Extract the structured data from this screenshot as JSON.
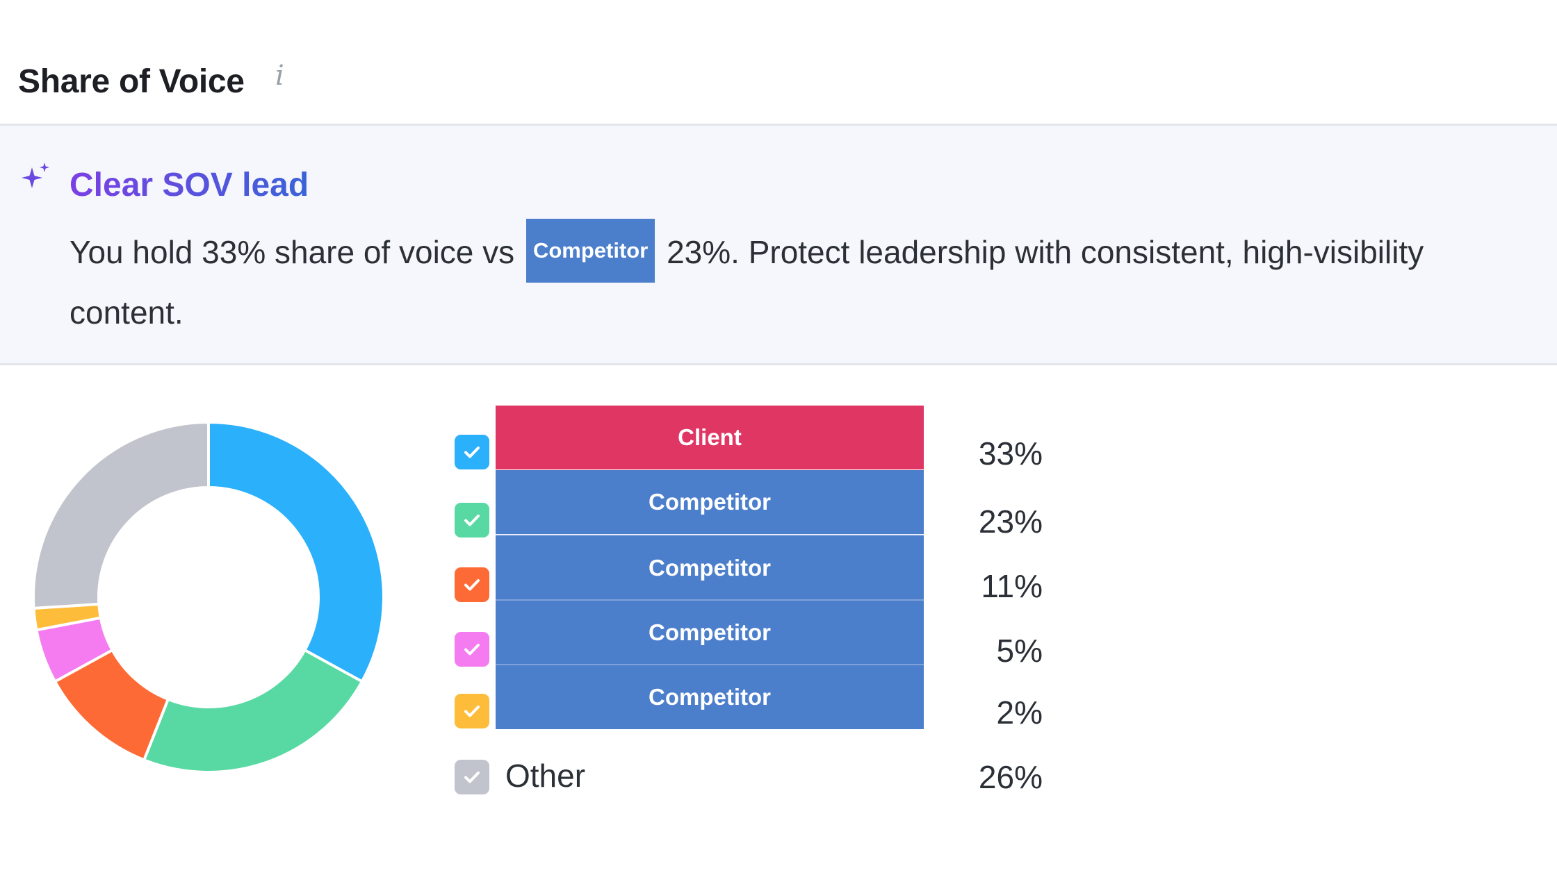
{
  "widget": {
    "title": "Share of Voice",
    "info_icon": "info-icon"
  },
  "insight": {
    "icon": "sparkle-icon",
    "title": "Clear SOV lead",
    "text_before": "You hold 33% share of voice vs",
    "tag": "Competitor",
    "text_after": "23%. Protect leadership with consistent, high-visibility content."
  },
  "colors": {
    "client_bar": "#e03664",
    "competitor_bar": "#4b7ecb",
    "accent_gradient_start": "#7b3fe4",
    "accent_gradient_end": "#3a63d8"
  },
  "chart_data": {
    "type": "pie",
    "variant": "donut",
    "legend_position": "right",
    "series": [
      {
        "name": "Client",
        "value": 33,
        "label": "33%",
        "color": "#2bb0fb"
      },
      {
        "name": "Competitor",
        "value": 23,
        "label": "23%",
        "color": "#58d9a3"
      },
      {
        "name": "Competitor",
        "value": 11,
        "label": "11%",
        "color": "#fe6a35"
      },
      {
        "name": "Competitor",
        "value": 5,
        "label": "5%",
        "color": "#f47bf0"
      },
      {
        "name": "Competitor",
        "value": 2,
        "label": "2%",
        "color": "#fdbd3a"
      },
      {
        "name": "Other",
        "value": 26,
        "label": "26%",
        "color": "#c1c4cc"
      }
    ]
  }
}
